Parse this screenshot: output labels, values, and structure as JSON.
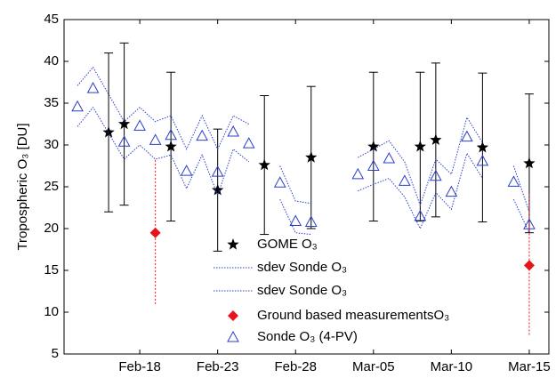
{
  "chart_data": {
    "type": "line",
    "y_label": "Tropospheric O₃ [DU]",
    "xlim": [
      44.14,
      75.26
    ],
    "xticks": [
      {
        "value": 49,
        "label": "Feb-18"
      },
      {
        "value": 54,
        "label": "Feb-23"
      },
      {
        "value": 59,
        "label": "Feb-28"
      },
      {
        "value": 64,
        "label": "Mar-05"
      },
      {
        "value": 69,
        "label": "Mar-10"
      },
      {
        "value": 74,
        "label": "Mar-15"
      }
    ],
    "ylim": [
      5,
      45
    ],
    "yticks": [
      5,
      10,
      15,
      20,
      25,
      30,
      35,
      40,
      45
    ],
    "legend": "bottom-center",
    "series": [
      {
        "name": "GOME O₃",
        "color": "#000000",
        "marker": "star",
        "x": [
          47,
          48,
          51,
          54,
          57,
          60,
          64,
          67,
          68,
          71,
          74
        ],
        "values": [
          31.5,
          32.5,
          29.8,
          24.6,
          27.6,
          28.5,
          29.8,
          29.8,
          30.6,
          29.7,
          27.8
        ],
        "errors": [
          9.5,
          9.7,
          8.9,
          7.3,
          8.3,
          8.5,
          8.9,
          8.9,
          9.2,
          8.9,
          8.3
        ]
      },
      {
        "name": "sdev Sonde O₃",
        "color": "#2a3fc8",
        "line": "dotted",
        "x": [
          45,
          46,
          48,
          49,
          50,
          51,
          52,
          53,
          54,
          55,
          56,
          57,
          58,
          59,
          60,
          61,
          63,
          64,
          65,
          66,
          67,
          68,
          69,
          70,
          71,
          72,
          73,
          74
        ],
        "values": [
          37.1,
          39.3,
          32.8,
          34.5,
          32.8,
          33.5,
          29.5,
          33.5,
          29.5,
          33.5,
          32.5,
          null,
          27.5,
          23.3,
          23,
          null,
          28.5,
          29.5,
          30.5,
          28,
          22.8,
          28.3,
          26.5,
          33.3,
          30.3,
          null,
          27.5,
          22
        ]
      },
      {
        "name": "sdev Sonde O₃",
        "color": "#2a3fc8",
        "line": "dotted",
        "x": [
          45,
          46,
          48,
          49,
          50,
          51,
          52,
          53,
          54,
          55,
          56,
          57,
          58,
          59,
          60,
          61,
          63,
          64,
          65,
          66,
          67,
          68,
          69,
          70,
          71,
          72,
          73,
          74
        ],
        "values": [
          32.2,
          34.5,
          28.3,
          30,
          28.3,
          28.8,
          24.8,
          28.8,
          24,
          29.5,
          28,
          null,
          23.5,
          19.5,
          19.3,
          null,
          24.5,
          25.3,
          26,
          23.8,
          20,
          24.3,
          22.3,
          29,
          26,
          null,
          23.5,
          19.5
        ]
      },
      {
        "name": "Ground based measurementsO₃",
        "color": "#e8141c",
        "marker": "diamond",
        "x": [
          50,
          74
        ],
        "values": [
          19.5,
          15.6
        ],
        "errors": [
          8.7,
          8.5
        ]
      },
      {
        "name": "Sonde O₃ (4-PV)",
        "color": "#2a3fc8",
        "marker": "triangle",
        "x": [
          45,
          46,
          48,
          49,
          50,
          51,
          52,
          53,
          54,
          55,
          56,
          57,
          58,
          59,
          60,
          61,
          63,
          64,
          65,
          66,
          67,
          68,
          69,
          70,
          71,
          72,
          73,
          74
        ],
        "values": [
          34.6,
          36.8,
          30.4,
          32.3,
          30.6,
          31.2,
          26.9,
          31.1,
          26.8,
          31.6,
          30.2,
          null,
          25.5,
          20.9,
          20.8,
          null,
          26.5,
          27.5,
          28.4,
          25.7,
          21.5,
          26.3,
          24.4,
          31.0,
          28.1,
          null,
          25.6,
          20.5
        ]
      }
    ]
  }
}
